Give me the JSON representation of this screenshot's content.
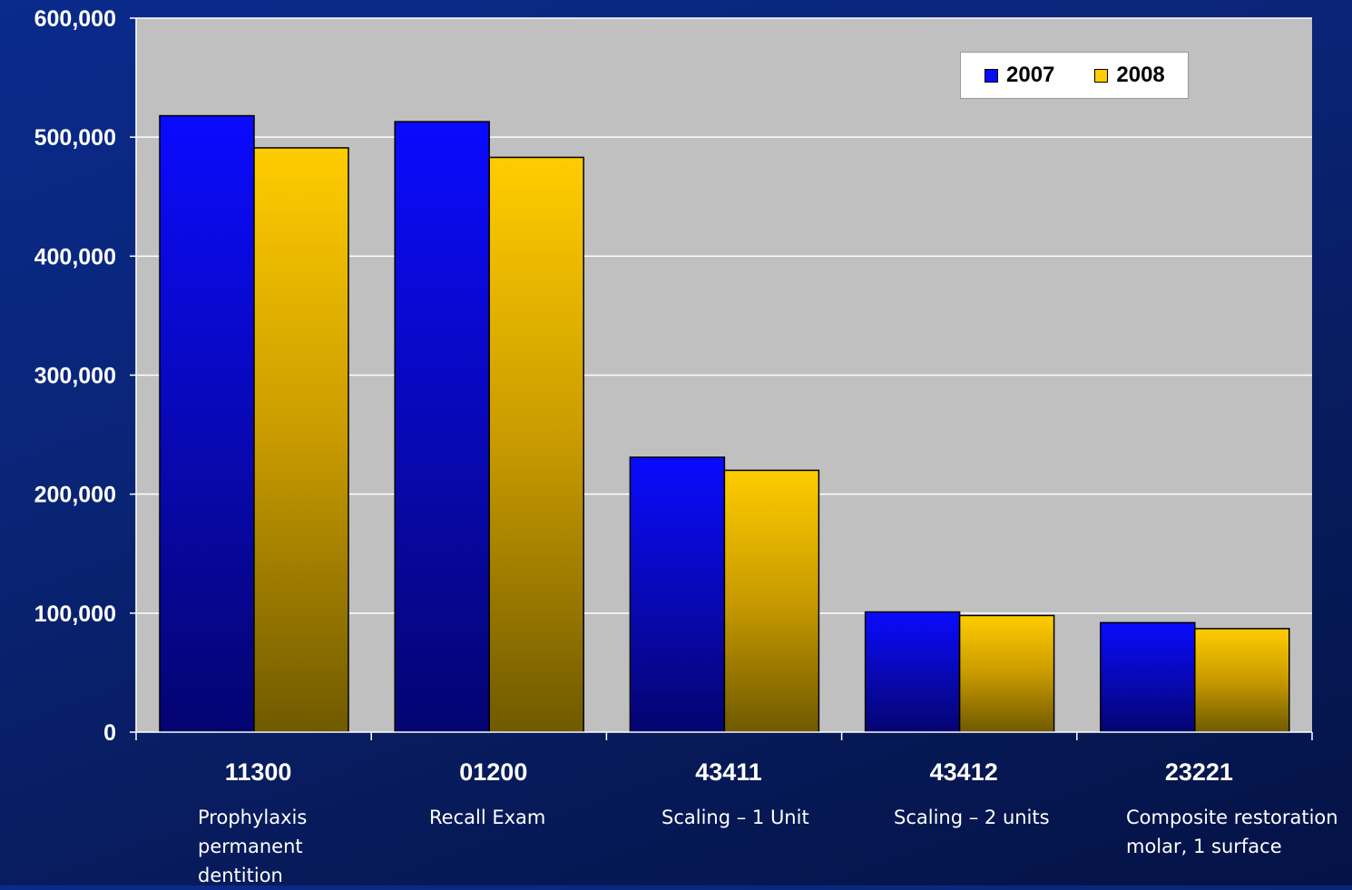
{
  "chart_data": {
    "type": "bar",
    "categories": [
      "11300",
      "01200",
      "43411",
      "43412",
      "23221"
    ],
    "category_descriptions": [
      "Prophylaxis permanent dentition",
      "Recall Exam",
      "Scaling – 1 Unit",
      "Scaling – 2 units",
      "Composite restoration molar, 1 surface"
    ],
    "series": [
      {
        "name": "2007",
        "values": [
          518000,
          513000,
          231000,
          101000,
          92000
        ]
      },
      {
        "name": "2008",
        "values": [
          491000,
          483000,
          220000,
          98000,
          87000
        ]
      }
    ],
    "ylim": [
      0,
      600000
    ],
    "yticks": [
      0,
      100000,
      200000,
      300000,
      400000,
      500000,
      600000
    ],
    "ytick_labels": [
      "0",
      "100,000",
      "200,000",
      "300,000",
      "400,000",
      "500,000",
      "600,000"
    ],
    "grid": true,
    "legend_position": "top-right",
    "plot_background": "#c0c0c0",
    "colors": {
      "2007": "#0a0aff",
      "2008": "#ffcc00"
    }
  }
}
